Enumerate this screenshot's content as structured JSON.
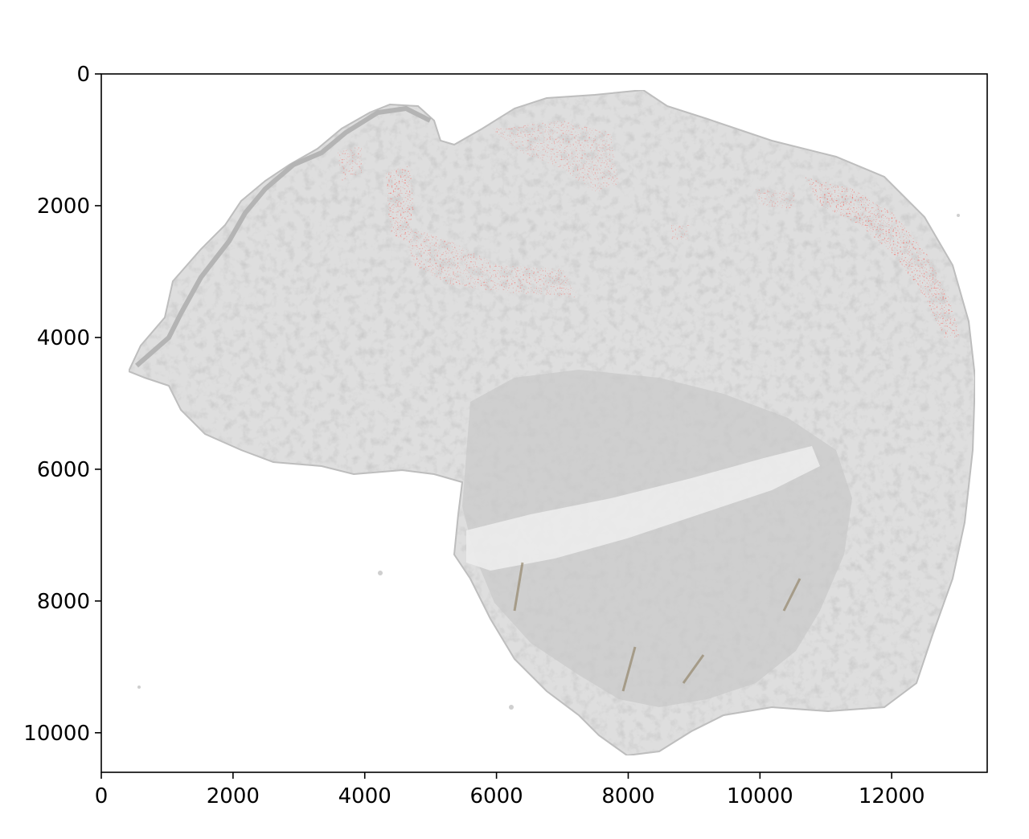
{
  "image": {
    "subject": "tissue-section-overlay",
    "palette": {
      "background": "#ffffff",
      "tissue": "#dcdcdc",
      "tissue_dark": "#c8c8c8",
      "hotspot": "#e0332e",
      "axis": "#000000"
    }
  },
  "axes": {
    "x": {
      "range": [
        0,
        13450
      ],
      "ticks": [
        {
          "value": 0,
          "label": "0"
        },
        {
          "value": 2000,
          "label": "2000"
        },
        {
          "value": 4000,
          "label": "4000"
        },
        {
          "value": 6000,
          "label": "6000"
        },
        {
          "value": 8000,
          "label": "8000"
        },
        {
          "value": 10000,
          "label": "10000"
        },
        {
          "value": 12000,
          "label": "12000"
        }
      ]
    },
    "y": {
      "range": [
        0,
        10600
      ],
      "inverted": true,
      "ticks": [
        {
          "value": 0,
          "label": "0"
        },
        {
          "value": 2000,
          "label": "2000"
        },
        {
          "value": 4000,
          "label": "4000"
        },
        {
          "value": 6000,
          "label": "6000"
        },
        {
          "value": 8000,
          "label": "8000"
        },
        {
          "value": 10000,
          "label": "10000"
        }
      ]
    }
  }
}
